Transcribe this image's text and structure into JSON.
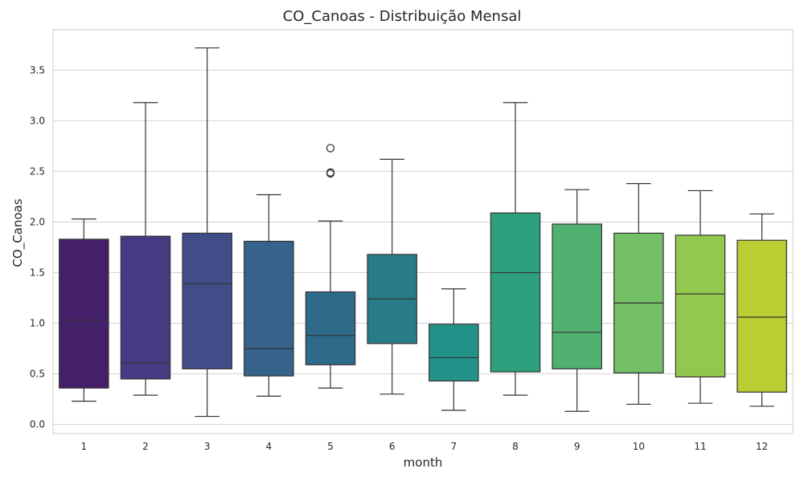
{
  "chart_data": {
    "type": "box",
    "title": "CO_Canoas - Distribuição Mensal",
    "xlabel": "month",
    "ylabel": "CO_Canoas",
    "ylim": [
      -0.09,
      3.9
    ],
    "yticks": [
      "0.0",
      "0.5",
      "1.0",
      "1.5",
      "2.0",
      "2.5",
      "3.0",
      "3.5"
    ],
    "grid": true,
    "categories": [
      "1",
      "2",
      "3",
      "4",
      "5",
      "6",
      "7",
      "8",
      "9",
      "10",
      "11",
      "12"
    ],
    "boxes": [
      {
        "month": "1",
        "whisker_low": 0.23,
        "q1": 0.36,
        "median": 1.03,
        "q3": 1.83,
        "whisker_high": 2.03,
        "outliers": [],
        "color": "#44206a"
      },
      {
        "month": "2",
        "whisker_low": 0.29,
        "q1": 0.45,
        "median": 0.61,
        "q3": 1.86,
        "whisker_high": 3.18,
        "outliers": [],
        "color": "#473a82"
      },
      {
        "month": "3",
        "whisker_low": 0.08,
        "q1": 0.55,
        "median": 1.39,
        "q3": 1.89,
        "whisker_high": 3.72,
        "outliers": [],
        "color": "#414d88"
      },
      {
        "month": "4",
        "whisker_low": 0.28,
        "q1": 0.48,
        "median": 0.75,
        "q3": 1.81,
        "whisker_high": 2.27,
        "outliers": [],
        "color": "#35638b"
      },
      {
        "month": "5",
        "whisker_low": 0.36,
        "q1": 0.59,
        "median": 0.88,
        "q3": 1.31,
        "whisker_high": 2.01,
        "outliers": [
          2.48,
          2.49,
          2.73
        ],
        "color": "#2e6b8a"
      },
      {
        "month": "6",
        "whisker_low": 0.3,
        "q1": 0.8,
        "median": 1.24,
        "q3": 1.68,
        "whisker_high": 2.62,
        "outliers": [],
        "color": "#297b89"
      },
      {
        "month": "7",
        "whisker_low": 0.14,
        "q1": 0.43,
        "median": 0.66,
        "q3": 0.99,
        "whisker_high": 1.34,
        "outliers": [],
        "color": "#23938a"
      },
      {
        "month": "8",
        "whisker_low": 0.29,
        "q1": 0.52,
        "median": 1.5,
        "q3": 2.09,
        "whisker_high": 3.18,
        "outliers": [],
        "color": "#2e9f7c"
      },
      {
        "month": "9",
        "whisker_low": 0.13,
        "q1": 0.55,
        "median": 0.91,
        "q3": 1.98,
        "whisker_high": 2.32,
        "outliers": [],
        "color": "#4fb070"
      },
      {
        "month": "10",
        "whisker_low": 0.2,
        "q1": 0.51,
        "median": 1.2,
        "q3": 1.89,
        "whisker_high": 2.38,
        "outliers": [],
        "color": "#72bf66"
      },
      {
        "month": "11",
        "whisker_low": 0.21,
        "q1": 0.47,
        "median": 1.29,
        "q3": 1.87,
        "whisker_high": 2.31,
        "outliers": [],
        "color": "#93c84f"
      },
      {
        "month": "12",
        "whisker_low": 0.18,
        "q1": 0.32,
        "median": 1.06,
        "q3": 1.82,
        "whisker_high": 2.08,
        "outliers": [],
        "color": "#b8ce33"
      }
    ]
  }
}
